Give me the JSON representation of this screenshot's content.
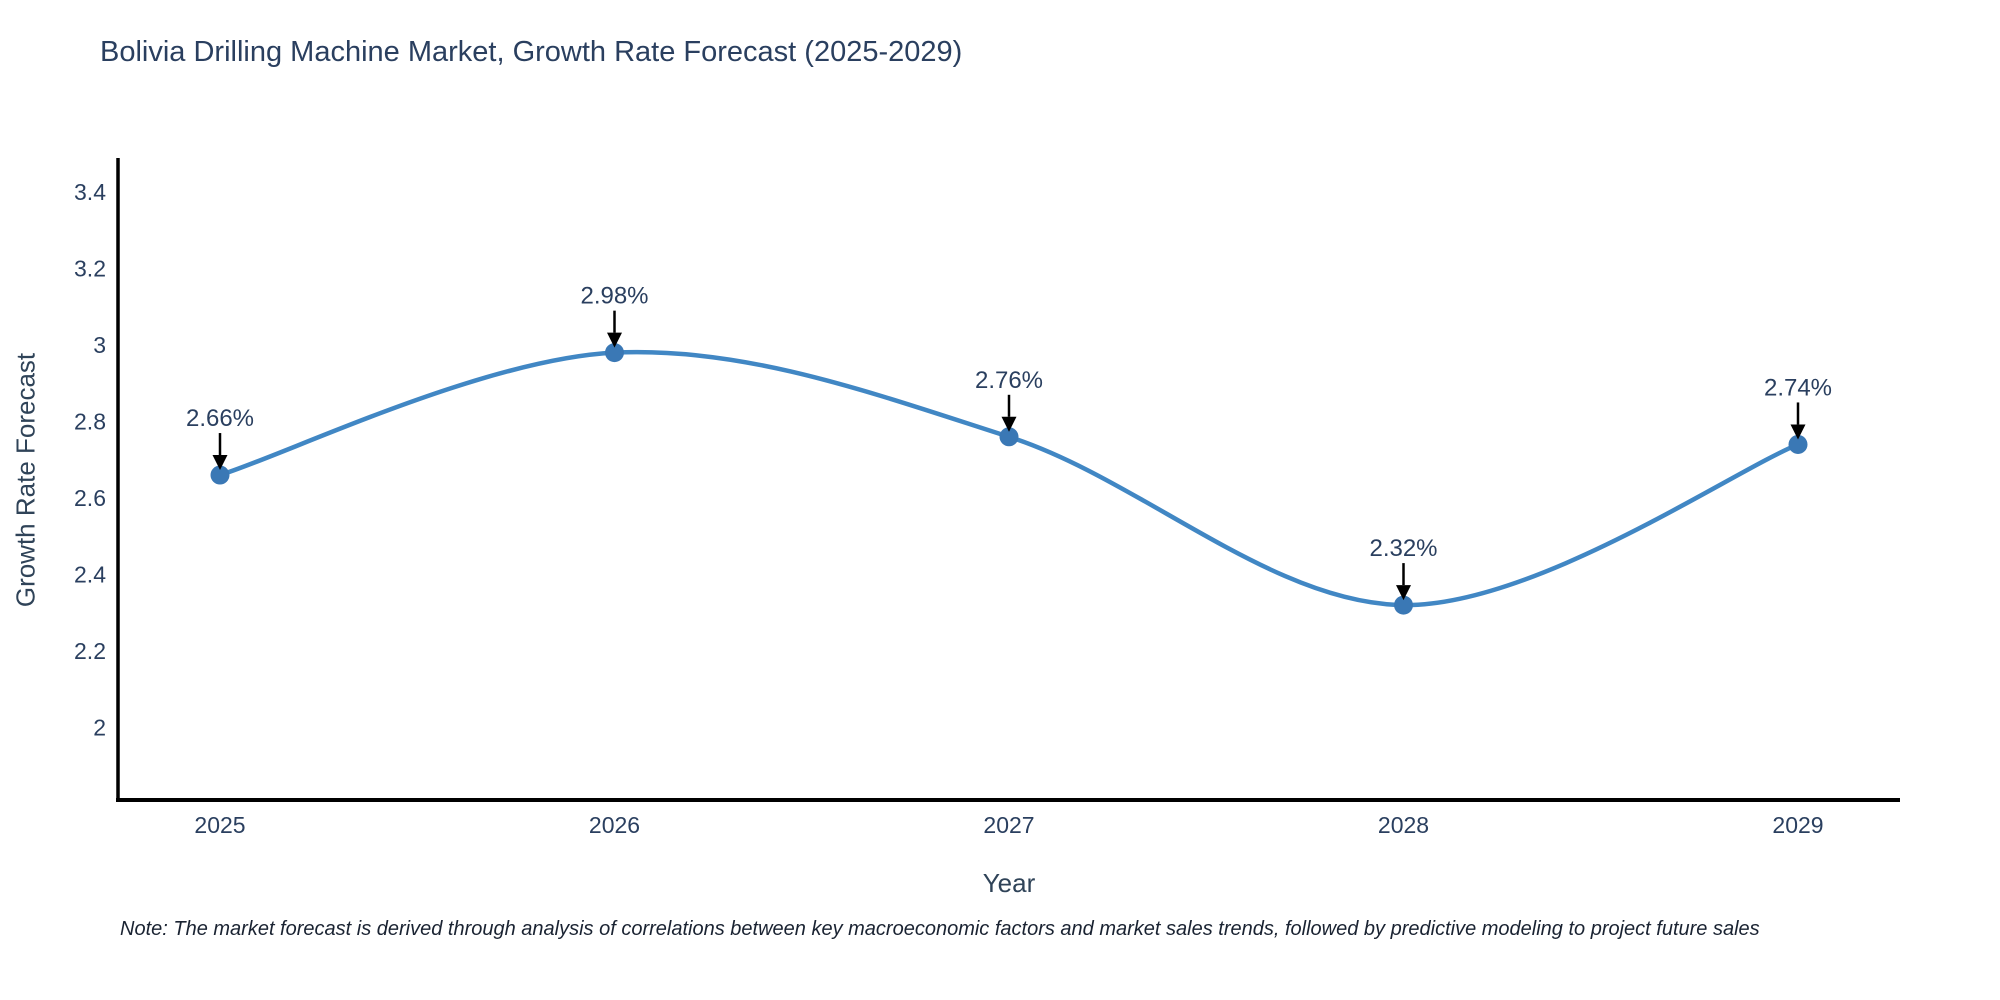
{
  "title": "Bolivia Drilling Machine Market, Growth Rate Forecast (2025-2029)",
  "note": "Note: The market forecast is derived through analysis of correlations between key macroeconomic factors and market sales trends, followed by predictive modeling to project future sales",
  "colors": {
    "line": "#4187c4",
    "marker": "#3a78b5",
    "axis": "#000000",
    "arrow": "#000000",
    "text": "#2a3f5f",
    "background": "#ffffff"
  },
  "chart_data": {
    "type": "line",
    "line_shape": "spline",
    "title": "Bolivia Drilling Machine Market, Growth Rate Forecast (2025-2029)",
    "xlabel": "Year",
    "ylabel": "Growth Rate Forecast",
    "categories": [
      "2025",
      "2026",
      "2027",
      "2028",
      "2029"
    ],
    "values": [
      2.66,
      2.98,
      2.76,
      2.32,
      2.74
    ],
    "point_labels": [
      "2.66%",
      "2.98%",
      "2.76%",
      "2.32%",
      "2.74%"
    ],
    "y_tick_labels": [
      "3.4",
      "3.2",
      "3",
      "2.8",
      "2.6",
      "2.4",
      "2.2",
      "2"
    ],
    "ylim": [
      1.84,
      3.49
    ],
    "grid": false,
    "legend": false,
    "annotations": "value labels with downward arrows above each data point"
  }
}
